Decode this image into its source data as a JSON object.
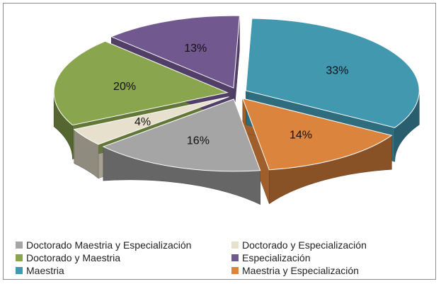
{
  "chart_data": {
    "type": "pie",
    "title": "",
    "legend_position": "bottom",
    "slices": [
      {
        "name": "Maestria",
        "value": 33,
        "label": "33%",
        "color": "#4198AF"
      },
      {
        "name": "Maestria y Especialización",
        "value": 14,
        "label": "14%",
        "color": "#DB843D"
      },
      {
        "name": "Doctorado Maestria y Especialización",
        "value": 16,
        "label": "16%",
        "color": "#A5A5A5"
      },
      {
        "name": "Doctorado y Especialización",
        "value": 4,
        "label": "4%",
        "color": "#E6E0CC"
      },
      {
        "name": "Doctorado y Maestria",
        "value": 20,
        "label": "20%",
        "color": "#89A54E"
      },
      {
        "name": "Especialización",
        "value": 13,
        "label": "13%",
        "color": "#71588F"
      }
    ]
  },
  "legend": {
    "items": [
      {
        "label": "Doctorado Maestria y Especialización",
        "color": "#A5A5A5"
      },
      {
        "label": "Doctorado y Especialización",
        "color": "#E6E0CC"
      },
      {
        "label": "Doctorado y Maestria",
        "color": "#89A54E"
      },
      {
        "label": "Especialización",
        "color": "#71588F"
      },
      {
        "label": "Maestria",
        "color": "#4198AF"
      },
      {
        "label": "Maestria y Especialización",
        "color": "#DB843D"
      }
    ]
  }
}
